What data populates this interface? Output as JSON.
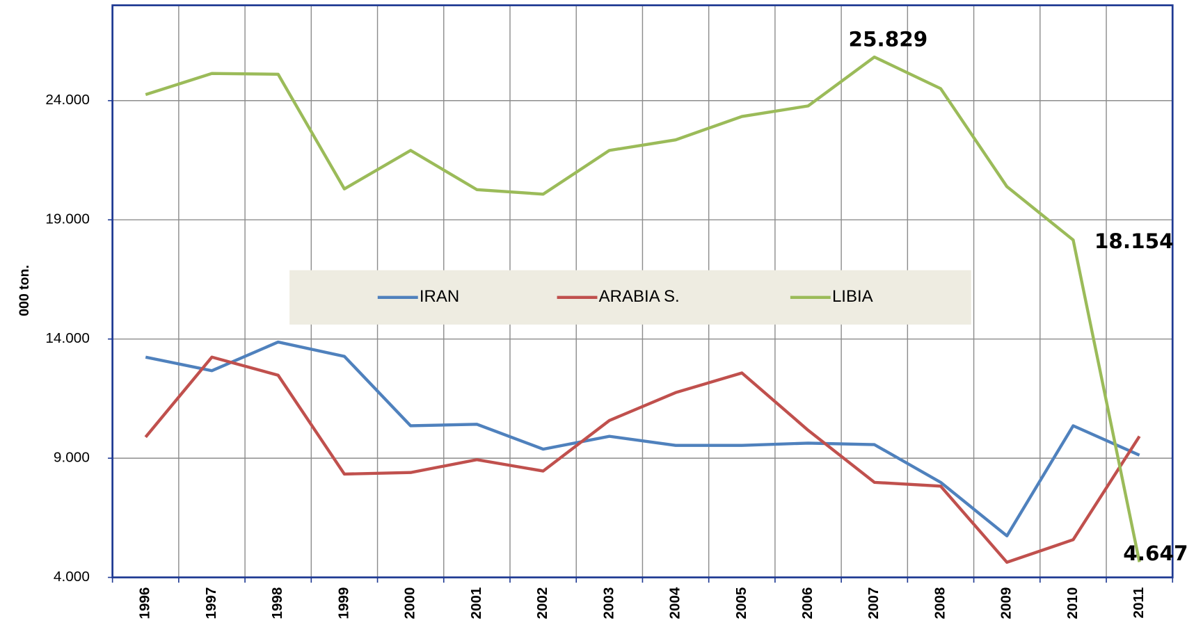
{
  "chart_data": {
    "type": "line",
    "y_label": "000 ton.",
    "categories": [
      "1996",
      "1997",
      "1998",
      "1999",
      "2000",
      "2001",
      "2002",
      "2003",
      "2004",
      "2005",
      "2006",
      "2007",
      "2008",
      "2009",
      "2010",
      "2011"
    ],
    "series": [
      {
        "name": "IRAN",
        "color": "#4f81bd",
        "values": [
          13241,
          12671,
          13873,
          13272,
          10361,
          10424,
          9380,
          9918,
          9538,
          9538,
          9633,
          9570,
          7987,
          5741,
          10361,
          9127
        ]
      },
      {
        "name": "ARABIA S.",
        "color": "#c0504d",
        "values": [
          9886,
          13241,
          12481,
          8335,
          8399,
          8937,
          8462,
          10582,
          11753,
          12576,
          10171,
          7987,
          7829,
          4633,
          5582,
          9918
        ]
      },
      {
        "name": "LIBIA",
        "color": "#9bbb59",
        "values": [
          24253,
          25139,
          25108,
          20297,
          21912,
          20266,
          20076,
          21912,
          22354,
          23335,
          23779,
          25829,
          24506,
          20392,
          18154,
          4647
        ],
        "value_labels": [
          null,
          null,
          null,
          null,
          null,
          null,
          null,
          null,
          null,
          null,
          null,
          "25.829",
          null,
          null,
          "18.154",
          "4.647"
        ]
      }
    ],
    "ylim": [
      4000,
      28000
    ],
    "yticks": [
      {
        "value": 4000,
        "label": "4.000"
      },
      {
        "value": 9000,
        "label": "9.000"
      },
      {
        "value": 14000,
        "label": "14.000"
      },
      {
        "value": 19000,
        "label": "19.000"
      },
      {
        "value": 24000,
        "label": "24.000"
      }
    ],
    "grid": true,
    "legend": "center"
  }
}
